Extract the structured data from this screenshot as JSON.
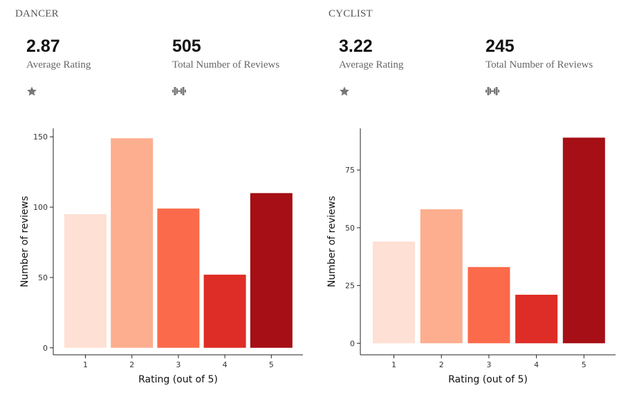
{
  "panels": [
    {
      "title": "DANCER",
      "stats": [
        {
          "value": "2.87",
          "label": "Average Rating",
          "icon": "star-icon"
        },
        {
          "value": "505",
          "label": "Total Number of Reviews",
          "icon": "dumbbell-icon"
        }
      ]
    },
    {
      "title": "CYCLIST",
      "stats": [
        {
          "value": "3.22",
          "label": "Average Rating",
          "icon": "star-icon"
        },
        {
          "value": "245",
          "label": "Total Number of Reviews",
          "icon": "dumbbell-icon"
        }
      ]
    }
  ],
  "chart_data": [
    {
      "type": "bar",
      "categories": [
        "1",
        "2",
        "3",
        "4",
        "5"
      ],
      "values": [
        95,
        149,
        99,
        52,
        110
      ],
      "colors": [
        "#fee0d4",
        "#fcae8f",
        "#fb6b4b",
        "#de2d26",
        "#a50f15"
      ],
      "xlabel": "Rating (out of 5)",
      "ylabel": "Number of reviews",
      "yticks": [
        0,
        50,
        100,
        150
      ],
      "ylim": [
        -5,
        156
      ],
      "grid": false
    },
    {
      "type": "bar",
      "categories": [
        "1",
        "2",
        "3",
        "4",
        "5"
      ],
      "values": [
        44,
        58,
        33,
        21,
        89
      ],
      "colors": [
        "#fee0d4",
        "#fcae8f",
        "#fb6b4b",
        "#de2d26",
        "#a50f15"
      ],
      "xlabel": "Rating (out of 5)",
      "ylabel": "Number of reviews",
      "yticks": [
        0,
        25,
        50,
        75
      ],
      "ylim": [
        -5,
        93
      ],
      "grid": false
    }
  ]
}
